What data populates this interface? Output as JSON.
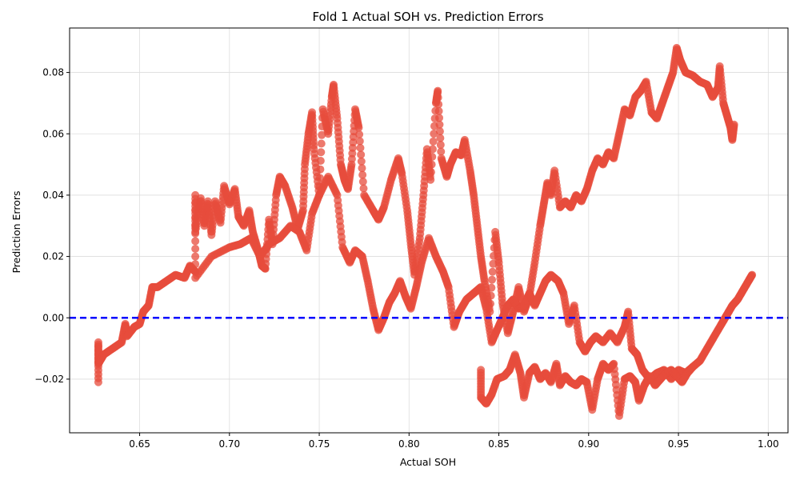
{
  "chart_data": {
    "type": "scatter",
    "title": "Fold 1 Actual SOH vs. Prediction Errors",
    "xlabel": "Actual SOH",
    "ylabel": "Prediction Errors",
    "xlim": [
      0.611,
      1.011
    ],
    "ylim": [
      -0.0375,
      0.0945
    ],
    "xticks": [
      0.65,
      0.7,
      0.75,
      0.8,
      0.85,
      0.9,
      0.95,
      1.0
    ],
    "xtick_labels": [
      "0.65",
      "0.70",
      "0.75",
      "0.80",
      "0.85",
      "0.90",
      "0.95",
      "1.00"
    ],
    "yticks": [
      -0.02,
      0.0,
      0.02,
      0.04,
      0.06,
      0.08
    ],
    "ytick_labels": [
      "−0.02",
      "0.00",
      "0.02",
      "0.04",
      "0.06",
      "0.08"
    ],
    "grid": true,
    "reference_line": {
      "y": 0.0,
      "style": "dashed",
      "color": "#0000ff"
    },
    "point_color": "#e74c3c",
    "series": [
      {
        "values_note": "",
        "points": [
          [
            0.627,
            -0.021
          ],
          [
            0.627,
            -0.008
          ],
          [
            0.627,
            -0.015
          ],
          [
            0.63,
            -0.012
          ],
          [
            0.635,
            -0.01
          ],
          [
            0.64,
            -0.008
          ],
          [
            0.642,
            -0.002
          ],
          [
            0.643,
            -0.006
          ],
          [
            0.647,
            -0.003
          ],
          [
            0.65,
            -0.002
          ],
          [
            0.652,
            0.002
          ],
          [
            0.655,
            0.004
          ],
          [
            0.657,
            0.01
          ],
          [
            0.66,
            0.01
          ],
          [
            0.665,
            0.012
          ],
          [
            0.67,
            0.014
          ],
          [
            0.675,
            0.013
          ],
          [
            0.678,
            0.017
          ],
          [
            0.681,
            0.015
          ],
          [
            0.681,
            0.04
          ],
          [
            0.681,
            0.028
          ],
          [
            0.684,
            0.039
          ],
          [
            0.686,
            0.03
          ],
          [
            0.688,
            0.038
          ],
          [
            0.69,
            0.027
          ],
          [
            0.692,
            0.038
          ],
          [
            0.695,
            0.031
          ],
          [
            0.697,
            0.043
          ],
          [
            0.7,
            0.037
          ],
          [
            0.703,
            0.042
          ],
          [
            0.705,
            0.033
          ],
          [
            0.708,
            0.03
          ],
          [
            0.711,
            0.035
          ],
          [
            0.713,
            0.028
          ],
          [
            0.716,
            0.022
          ],
          [
            0.718,
            0.017
          ],
          [
            0.72,
            0.016
          ],
          [
            0.722,
            0.032
          ],
          [
            0.724,
            0.024
          ],
          [
            0.726,
            0.04
          ],
          [
            0.728,
            0.046
          ],
          [
            0.731,
            0.043
          ],
          [
            0.735,
            0.036
          ],
          [
            0.738,
            0.029
          ],
          [
            0.741,
            0.035
          ],
          [
            0.742,
            0.05
          ],
          [
            0.744,
            0.06
          ],
          [
            0.746,
            0.067
          ],
          [
            0.747,
            0.055
          ],
          [
            0.75,
            0.04
          ],
          [
            0.752,
            0.068
          ],
          [
            0.755,
            0.06
          ],
          [
            0.757,
            0.072
          ],
          [
            0.758,
            0.076
          ],
          [
            0.76,
            0.065
          ],
          [
            0.762,
            0.05
          ],
          [
            0.764,
            0.045
          ],
          [
            0.766,
            0.042
          ],
          [
            0.768,
            0.05
          ],
          [
            0.77,
            0.068
          ],
          [
            0.772,
            0.062
          ],
          [
            0.775,
            0.04
          ],
          [
            0.78,
            0.035
          ],
          [
            0.783,
            0.032
          ],
          [
            0.786,
            0.036
          ],
          [
            0.79,
            0.045
          ],
          [
            0.794,
            0.052
          ],
          [
            0.796,
            0.047
          ],
          [
            0.799,
            0.035
          ],
          [
            0.801,
            0.024
          ],
          [
            0.803,
            0.014
          ],
          [
            0.806,
            0.026
          ],
          [
            0.808,
            0.04
          ],
          [
            0.81,
            0.055
          ],
          [
            0.812,
            0.045
          ],
          [
            0.815,
            0.07
          ],
          [
            0.816,
            0.074
          ],
          [
            0.818,
            0.052
          ],
          [
            0.821,
            0.046
          ],
          [
            0.823,
            0.05
          ],
          [
            0.826,
            0.054
          ],
          [
            0.829,
            0.053
          ],
          [
            0.831,
            0.058
          ],
          [
            0.834,
            0.048
          ],
          [
            0.836,
            0.04
          ],
          [
            0.838,
            0.03
          ],
          [
            0.84,
            0.02
          ],
          [
            0.842,
            0.012
          ],
          [
            0.845,
            0.002
          ],
          [
            0.848,
            0.028
          ],
          [
            0.85,
            0.018
          ],
          [
            0.852,
            0.005
          ],
          [
            0.855,
            -0.005
          ],
          [
            0.858,
            0.002
          ],
          [
            0.861,
            0.01
          ],
          [
            0.864,
            0.002
          ],
          [
            0.867,
            0.007
          ],
          [
            0.87,
            0.018
          ],
          [
            0.873,
            0.03
          ],
          [
            0.875,
            0.037
          ],
          [
            0.877,
            0.044
          ],
          [
            0.879,
            0.04
          ],
          [
            0.881,
            0.048
          ],
          [
            0.884,
            0.036
          ],
          [
            0.887,
            0.038
          ],
          [
            0.89,
            0.036
          ],
          [
            0.893,
            0.04
          ],
          [
            0.896,
            0.038
          ],
          [
            0.899,
            0.042
          ],
          [
            0.902,
            0.048
          ],
          [
            0.905,
            0.052
          ],
          [
            0.908,
            0.05
          ],
          [
            0.911,
            0.054
          ],
          [
            0.914,
            0.052
          ],
          [
            0.917,
            0.06
          ],
          [
            0.92,
            0.068
          ],
          [
            0.923,
            0.066
          ],
          [
            0.926,
            0.072
          ],
          [
            0.929,
            0.074
          ],
          [
            0.932,
            0.077
          ],
          [
            0.935,
            0.067
          ],
          [
            0.938,
            0.065
          ],
          [
            0.941,
            0.07
          ],
          [
            0.944,
            0.075
          ],
          [
            0.947,
            0.08
          ],
          [
            0.949,
            0.088
          ],
          [
            0.951,
            0.084
          ],
          [
            0.954,
            0.08
          ],
          [
            0.958,
            0.079
          ],
          [
            0.962,
            0.077
          ],
          [
            0.966,
            0.076
          ],
          [
            0.969,
            0.072
          ],
          [
            0.972,
            0.075
          ],
          [
            0.973,
            0.082
          ],
          [
            0.975,
            0.07
          ],
          [
            0.977,
            0.066
          ],
          [
            0.979,
            0.062
          ],
          [
            0.98,
            0.058
          ],
          [
            0.981,
            0.063
          ],
          [
            0.681,
            0.013
          ],
          [
            0.69,
            0.02
          ],
          [
            0.7,
            0.023
          ],
          [
            0.706,
            0.024
          ],
          [
            0.712,
            0.026
          ],
          [
            0.717,
            0.02
          ],
          [
            0.722,
            0.024
          ],
          [
            0.728,
            0.026
          ],
          [
            0.734,
            0.03
          ],
          [
            0.739,
            0.028
          ],
          [
            0.743,
            0.022
          ],
          [
            0.746,
            0.034
          ],
          [
            0.75,
            0.04
          ],
          [
            0.755,
            0.046
          ],
          [
            0.76,
            0.04
          ],
          [
            0.763,
            0.023
          ],
          [
            0.767,
            0.018
          ],
          [
            0.77,
            0.022
          ],
          [
            0.774,
            0.02
          ],
          [
            0.777,
            0.012
          ],
          [
            0.78,
            0.003
          ],
          [
            0.783,
            -0.004
          ],
          [
            0.786,
            0.0
          ],
          [
            0.789,
            0.005
          ],
          [
            0.792,
            0.008
          ],
          [
            0.795,
            0.012
          ],
          [
            0.798,
            0.007
          ],
          [
            0.801,
            0.003
          ],
          [
            0.804,
            0.01
          ],
          [
            0.807,
            0.018
          ],
          [
            0.811,
            0.026
          ],
          [
            0.815,
            0.02
          ],
          [
            0.819,
            0.015
          ],
          [
            0.822,
            0.01
          ],
          [
            0.825,
            -0.003
          ],
          [
            0.828,
            0.002
          ],
          [
            0.832,
            0.006
          ],
          [
            0.836,
            0.008
          ],
          [
            0.84,
            0.01
          ],
          [
            0.843,
            0.003
          ],
          [
            0.846,
            -0.008
          ],
          [
            0.849,
            -0.004
          ],
          [
            0.852,
            0.0
          ],
          [
            0.855,
            0.004
          ],
          [
            0.858,
            0.006
          ],
          [
            0.861,
            0.003
          ],
          [
            0.864,
            0.004
          ],
          [
            0.867,
            0.008
          ],
          [
            0.87,
            0.004
          ],
          [
            0.873,
            0.008
          ],
          [
            0.876,
            0.012
          ],
          [
            0.879,
            0.014
          ],
          [
            0.883,
            0.012
          ],
          [
            0.886,
            0.008
          ],
          [
            0.889,
            -0.002
          ],
          [
            0.892,
            0.004
          ],
          [
            0.895,
            -0.008
          ],
          [
            0.898,
            -0.011
          ],
          [
            0.901,
            -0.008
          ],
          [
            0.904,
            -0.006
          ],
          [
            0.908,
            -0.008
          ],
          [
            0.912,
            -0.005
          ],
          [
            0.916,
            -0.008
          ],
          [
            0.92,
            -0.003
          ],
          [
            0.922,
            0.002
          ],
          [
            0.924,
            -0.01
          ],
          [
            0.927,
            -0.012
          ],
          [
            0.93,
            -0.017
          ],
          [
            0.934,
            -0.02
          ],
          [
            0.938,
            -0.018
          ],
          [
            0.942,
            -0.017
          ],
          [
            0.946,
            -0.02
          ],
          [
            0.95,
            -0.017
          ],
          [
            0.954,
            -0.018
          ],
          [
            0.958,
            -0.016
          ],
          [
            0.962,
            -0.014
          ],
          [
            0.966,
            -0.01
          ],
          [
            0.97,
            -0.006
          ],
          [
            0.974,
            -0.002
          ],
          [
            0.977,
            0.001
          ],
          [
            0.98,
            0.004
          ],
          [
            0.983,
            0.006
          ],
          [
            0.986,
            0.009
          ],
          [
            0.989,
            0.012
          ],
          [
            0.991,
            0.014
          ],
          [
            0.84,
            -0.017
          ],
          [
            0.84,
            -0.026
          ],
          [
            0.843,
            -0.028
          ],
          [
            0.846,
            -0.025
          ],
          [
            0.849,
            -0.02
          ],
          [
            0.853,
            -0.019
          ],
          [
            0.856,
            -0.017
          ],
          [
            0.859,
            -0.012
          ],
          [
            0.862,
            -0.018
          ],
          [
            0.864,
            -0.026
          ],
          [
            0.867,
            -0.018
          ],
          [
            0.87,
            -0.016
          ],
          [
            0.873,
            -0.02
          ],
          [
            0.876,
            -0.018
          ],
          [
            0.879,
            -0.021
          ],
          [
            0.882,
            -0.015
          ],
          [
            0.884,
            -0.022
          ],
          [
            0.887,
            -0.019
          ],
          [
            0.89,
            -0.021
          ],
          [
            0.893,
            -0.022
          ],
          [
            0.896,
            -0.02
          ],
          [
            0.899,
            -0.021
          ],
          [
            0.902,
            -0.03
          ],
          [
            0.905,
            -0.02
          ],
          [
            0.908,
            -0.015
          ],
          [
            0.911,
            -0.017
          ],
          [
            0.914,
            -0.015
          ],
          [
            0.917,
            -0.032
          ],
          [
            0.92,
            -0.02
          ],
          [
            0.923,
            -0.019
          ],
          [
            0.926,
            -0.021
          ],
          [
            0.928,
            -0.027
          ],
          [
            0.931,
            -0.022
          ],
          [
            0.934,
            -0.019
          ],
          [
            0.937,
            -0.022
          ],
          [
            0.94,
            -0.02
          ],
          [
            0.943,
            -0.018
          ],
          [
            0.946,
            -0.017
          ],
          [
            0.949,
            -0.019
          ],
          [
            0.952,
            -0.021
          ],
          [
            0.955,
            -0.018
          ],
          [
            0.958,
            -0.016
          ]
        ]
      }
    ]
  }
}
